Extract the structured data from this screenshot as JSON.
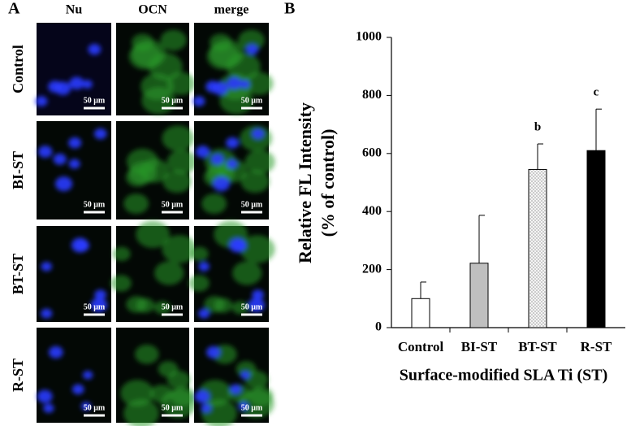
{
  "panel_a": {
    "label": "A",
    "columns": [
      "Nu",
      "OCN",
      "merge"
    ],
    "rows": [
      "Control",
      "BI-ST",
      "BT-ST",
      "R-ST"
    ],
    "scale_bar": "50 μm"
  },
  "chart_data": {
    "type": "bar",
    "panel_label": "B",
    "ylabel": [
      "Relative FL Intensity",
      "(% of control)"
    ],
    "xlabel": "Surface-modified SLA Ti (ST)",
    "categories": [
      "Control",
      "BI-ST",
      "BT-ST",
      "R-ST"
    ],
    "values": [
      100,
      222,
      545,
      610
    ],
    "errors": [
      57,
      165,
      88,
      143
    ],
    "colors": [
      "#ffffff",
      "#bfbfbf",
      "#eeeeee",
      "#000000"
    ],
    "annotations": [
      {
        "category": "BT-ST",
        "text": "b"
      },
      {
        "category": "R-ST",
        "text": "c"
      }
    ],
    "ylim": [
      0,
      1000
    ],
    "yticks": [
      0,
      200,
      400,
      600,
      800,
      1000
    ]
  }
}
